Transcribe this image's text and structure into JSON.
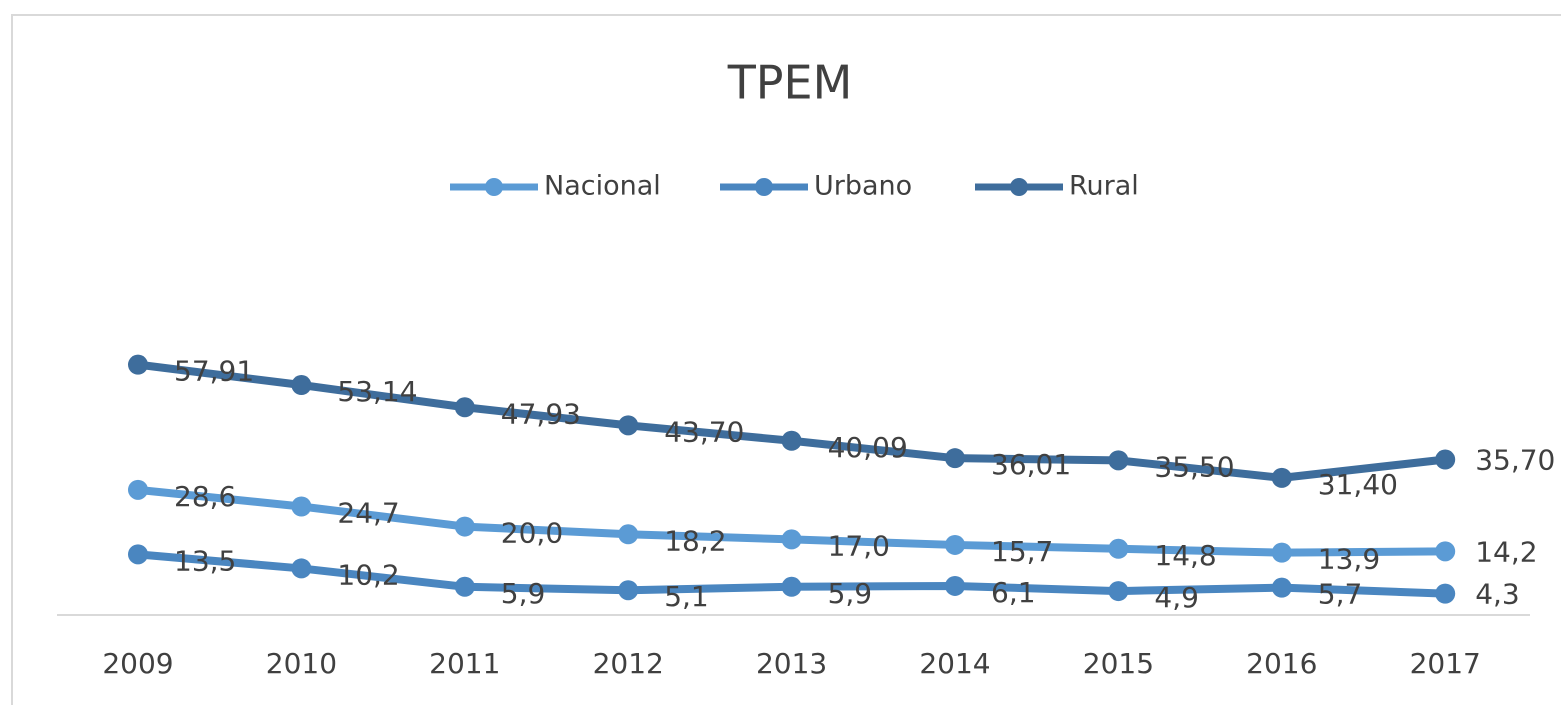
{
  "chart_data": {
    "type": "line",
    "title": "TPEM",
    "categories": [
      "2009",
      "2010",
      "2011",
      "2012",
      "2013",
      "2014",
      "2015",
      "2016",
      "2017"
    ],
    "series": [
      {
        "name": "Nacional",
        "color": "#5b9bd5",
        "values": [
          28.6,
          24.7,
          20.0,
          18.2,
          17.0,
          15.7,
          14.8,
          13.9,
          14.2
        ],
        "value_labels": [
          "28,6",
          "24,7",
          "20,0",
          "18,2",
          "17,0",
          "15,7",
          "14,8",
          "13,9",
          "14,2"
        ]
      },
      {
        "name": "Urbano",
        "color": "#4a86c0",
        "values": [
          13.5,
          10.2,
          5.9,
          5.1,
          5.9,
          6.1,
          4.9,
          5.7,
          4.3
        ],
        "value_labels": [
          "13,5",
          "10,2",
          "5,9",
          "5,1",
          "5,9",
          "6,1",
          "4,9",
          "5,7",
          "4,3"
        ]
      },
      {
        "name": "Rural",
        "color": "#3e6d9c",
        "values": [
          57.91,
          53.14,
          47.93,
          43.7,
          40.09,
          36.01,
          35.5,
          31.4,
          35.7
        ],
        "value_labels": [
          "57,91",
          "53,14",
          "47,93",
          "43,70",
          "40,09",
          "36,01",
          "35,50",
          "31,40",
          "35,70"
        ]
      }
    ],
    "ylim": [
      0,
      70
    ],
    "legend": "top"
  }
}
